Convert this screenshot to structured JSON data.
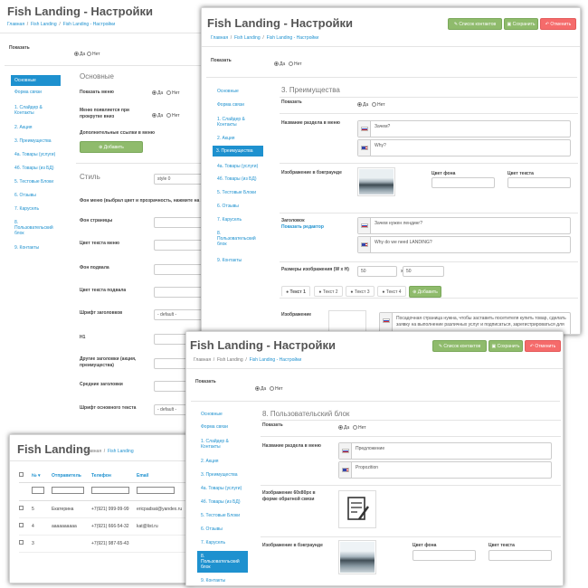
{
  "colors": {
    "accent": "#1e91cf",
    "green": "#8fbb6c",
    "red": "#f56b6b"
  },
  "p1": {
    "title": "Fish Landing - Настройки",
    "breadcrumb": {
      "home": "Главная",
      "module": "Fish Landing",
      "current": "Fish Landing - Настройки"
    },
    "show_label": "Показать",
    "yes": "Да",
    "no": "Нет",
    "nav": [
      "Основные",
      "Форма связи",
      "1. Слайдер & Контакты",
      "2. Акция",
      "3. Преимущества",
      "4a. Товары (услуги)",
      "4б. Товары (из БД)",
      "5. Тестовые Блоки",
      "6. Отзывы",
      "7. Карусель",
      "8. Пользовательский блок",
      "9. Контакты"
    ],
    "section": "Основные",
    "fields": {
      "show_menu": "Показать меню",
      "menu_on_scroll": "Меню появляется при прокрутке вниз",
      "extra_links": "Дополнительные ссылки в меню",
      "add": "Добавить"
    },
    "style_title": "Стиль",
    "style_value": "style 0",
    "style_fields": [
      "Фон меню (выбрал цвет и прозрачность, нажмите на S",
      "Фон страницы",
      "Цвет текста меню",
      "Фон подвала",
      "Цвет текста подвала",
      "Шрифт заголовков",
      "H1",
      "Другие заголовки (акция, преимущества)",
      "Средние заголовки",
      "Шрифт основного текста"
    ],
    "default_value": "- default -"
  },
  "p2": {
    "title": "Fish Landing - Настройки",
    "breadcrumb": {
      "home": "Главная",
      "module": "Fish Landing",
      "current": "Fish Landing - Настройки"
    },
    "buttons": {
      "contacts": "Список контактов",
      "save": "Сохранить",
      "cancel": "Отменить"
    },
    "show_label": "Показать",
    "yes": "Да",
    "no": "Нет",
    "nav": [
      "Основные",
      "Форма связи",
      "1. Слайдер & Контакты",
      "2. Акция",
      "3. Преимущества",
      "4a. Товары (услуги)",
      "4б. Товары (из БД)",
      "5. Тестовые Блоки",
      "6. Отзывы",
      "7. Карусель",
      "8. Пользовательский блок",
      "9. Контакты"
    ],
    "active_nav": 4,
    "section": "3. Преимущества",
    "section_title_label": "Название раздела в меню",
    "title_ru": "Зачем?",
    "title_en": "Why?",
    "bg_image_label": "Изображение в бэкграунде",
    "bg_color": "Цвет фона",
    "text_color": "Цвет текста",
    "heading_label": "Заголовок",
    "show_editor": "Показать редактор",
    "heading_ru": "Зачем нужен лендинг?",
    "heading_en": "Why do we need LANDING?",
    "size_label": "Размеры изображения (W x H)",
    "width": "50",
    "height": "50",
    "x": "x",
    "tabs": [
      "Текст 1",
      "Текст 2",
      "Текст 3",
      "Текст 4"
    ],
    "add": "Добавить",
    "image_label": "Изображение",
    "text_ru": "Посадочная страница нужна, чтобы заставить посетителя купить товар, сделать заявку на выполнение различных услуг и подписаться, зарегистрироваться для"
  },
  "p3": {
    "title": "Fish Landing - Настройки",
    "breadcrumb": {
      "home": "Главная",
      "module": "Fish Landing",
      "current": "Fish Landing - Настройки"
    },
    "buttons": {
      "contacts": "Список контактов",
      "save": "Сохранить",
      "cancel": "Отменить"
    },
    "show_label": "Показать",
    "yes": "Да",
    "no": "Нет",
    "nav": [
      "Основные",
      "Форма связи",
      "1. Слайдер & Контакты",
      "2. Акция",
      "3. Преимущества",
      "4a. Товары (услуги)",
      "4б. Товары (из БД)",
      "5. Тестовые Блоки",
      "6. Отзывы",
      "7. Карусель",
      "8. Пользовательский блок",
      "9. Контакты"
    ],
    "active_nav": 10,
    "section": "8. Пользовательский блок",
    "show_label2": "Показать",
    "section_title_label": "Название раздела в меню",
    "title_ru": "Предложение",
    "title_en": "Propozition",
    "feedback_image_label": "Изображение 60х80рх в форме обратной связи",
    "bg_image_label": "Изображение в бэкграунде",
    "bg_color": "Цвет фона",
    "text_color": "Цвет текста"
  },
  "p4": {
    "title": "Fish Landing",
    "breadcrumb": {
      "home": "Главная",
      "current": "Fish Landing"
    },
    "columns": [
      "№",
      "Отправитель",
      "Телефон",
      "Email"
    ],
    "rows": [
      {
        "n": "5",
        "name": "Екатерина",
        "phone": "+7(921) 999-99-99",
        "email": "ericpadsat@yandex.ru"
      },
      {
        "n": "4",
        "name": "аааааааааа",
        "phone": "+7(921) 666-54-32",
        "email": "kat@list.ru"
      },
      {
        "n": "3",
        "name": "",
        "phone": "+7(921) 987-65-43",
        "email": ""
      }
    ]
  }
}
